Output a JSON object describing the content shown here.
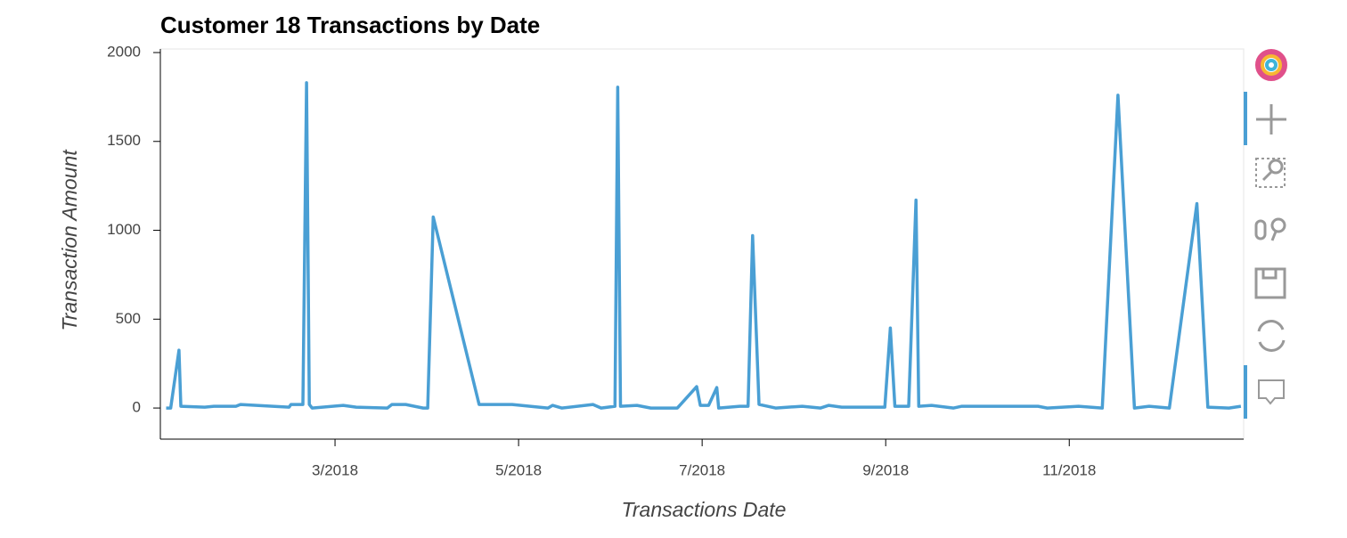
{
  "chart_data": {
    "type": "line",
    "title": "Customer 18 Transactions by Date",
    "x_label": "Transactions Date",
    "y_label": "Transaction Amount",
    "color": "#4a9fd4",
    "x": [
      1.16,
      1.21,
      1.3,
      1.32,
      1.58,
      1.68,
      1.92,
      1.97,
      2.5,
      2.52,
      2.65,
      2.69,
      2.72,
      2.75,
      3.09,
      3.23,
      3.57,
      3.62,
      3.77,
      3.96,
      4.01,
      4.07,
      4.57,
      4.93,
      5.32,
      5.37,
      5.47,
      5.81,
      5.9,
      6.05,
      6.08,
      6.11,
      6.29,
      6.44,
      6.73,
      6.94,
      6.98,
      7.07,
      7.16,
      7.18,
      7.41,
      7.5,
      7.55,
      7.62,
      7.8,
      8.09,
      8.29,
      8.38,
      8.52,
      8.99,
      9.05,
      9.1,
      9.25,
      9.33,
      9.36,
      9.5,
      9.74,
      9.83,
      10.03,
      10.66,
      10.76,
      11.1,
      11.36,
      11.53,
      11.71,
      11.87,
      12.09,
      12.39,
      12.51,
      12.74,
      12.87
    ],
    "values": [
      0,
      0,
      325,
      10,
      5,
      10,
      10,
      20,
      5,
      20,
      20,
      1830,
      20,
      0,
      15,
      5,
      0,
      20,
      20,
      0,
      0,
      1075,
      20,
      20,
      0,
      15,
      0,
      20,
      0,
      10,
      1805,
      10,
      15,
      0,
      0,
      120,
      15,
      15,
      115,
      0,
      10,
      10,
      970,
      20,
      0,
      10,
      0,
      15,
      5,
      5,
      450,
      10,
      10,
      1170,
      10,
      15,
      0,
      10,
      10,
      10,
      0,
      10,
      0,
      1760,
      0,
      10,
      0,
      1150,
      5,
      0,
      10
    ],
    "xlim": [
      1.097,
      12.9
    ],
    "xticks": [
      {
        "value": 3,
        "label": "3/2018"
      },
      {
        "value": 5,
        "label": "5/2018"
      },
      {
        "value": 7,
        "label": "7/2018"
      },
      {
        "value": 9,
        "label": "9/2018"
      },
      {
        "value": 11,
        "label": "11/2018"
      }
    ],
    "ylim": [
      -175,
      2020
    ],
    "yticks": [
      0,
      500,
      1000,
      1500,
      2000
    ],
    "grid": false
  }
}
